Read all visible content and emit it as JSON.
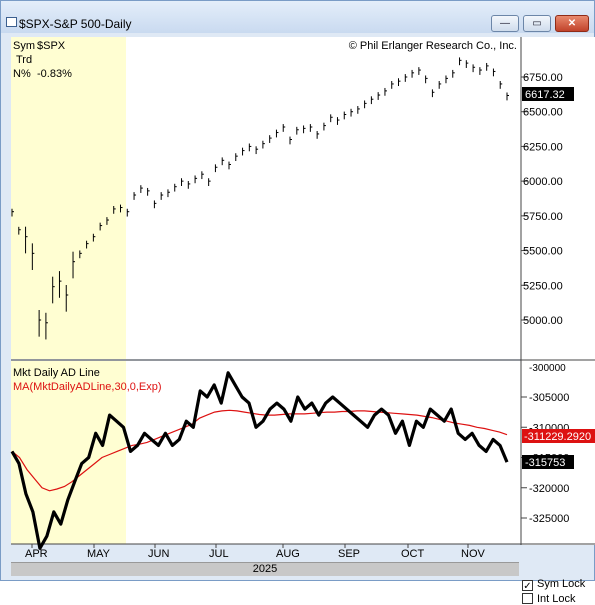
{
  "window": {
    "title": "$SPX-S&P 500-Daily",
    "buttons": {
      "minimize": "—",
      "restore": "▭",
      "close": "✕"
    }
  },
  "info": {
    "sym_label": "Sym",
    "sym_value": "$SPX",
    "trd_label": "Trd",
    "pct_label": "N%",
    "pct_value": "-0.83%",
    "copyright": "© Phil Erlanger Research Co., Inc."
  },
  "price_panel": {
    "y_ticks": [
      "6750.00",
      "6500.00",
      "6250.00",
      "6000.00",
      "5750.00",
      "5500.00",
      "5250.00",
      "5000.00"
    ],
    "last_price": "6617.32"
  },
  "ad_panel": {
    "title": "Mkt Daily AD Line",
    "ma_label": "MA(MktDailyADLine,30,0,Exp)",
    "y_ticks": [
      "-305000",
      "-310000",
      "-315000",
      "-320000",
      "-325000"
    ],
    "top_tick": "-300000",
    "ma_value": "-311229.2920",
    "last_value": "-315753"
  },
  "x_axis": {
    "months": [
      "APR",
      "MAY",
      "JUN",
      "JUL",
      "AUG",
      "SEP",
      "OCT",
      "NOV"
    ],
    "year": "2025"
  },
  "controls": {
    "sym_lock": "Sym Lock",
    "sym_lock_checked": true,
    "int_lock": "Int Lock",
    "int_lock_checked": false
  },
  "colors": {
    "highlight": "#fffed2",
    "ma_line": "#dd1111",
    "ma_tag": "#dd1111",
    "last_tag": "#000000"
  },
  "chart_data": [
    {
      "type": "line",
      "ylim": [
        4800,
        7000
      ],
      "closes": [
        5780,
        5650,
        5600,
        5480,
        5000,
        4980,
        5240,
        5280,
        5180,
        5420,
        5480,
        5550,
        5600,
        5680,
        5720,
        5800,
        5810,
        5780,
        5900,
        5950,
        5930,
        5840,
        5900,
        5920,
        5960,
        6000,
        5980,
        6020,
        6050,
        6000,
        6100,
        6150,
        6120,
        6180,
        6220,
        6250,
        6230,
        6270,
        6310,
        6350,
        6390,
        6300,
        6370,
        6380,
        6390,
        6340,
        6400,
        6460,
        6440,
        6480,
        6500,
        6520,
        6560,
        6590,
        6620,
        6650,
        6700,
        6720,
        6750,
        6780,
        6800,
        6740,
        6640,
        6700,
        6740,
        6780,
        6870,
        6850,
        6820,
        6800,
        6830,
        6790,
        6700,
        6617
      ]
    },
    {
      "type": "line",
      "ylim": [
        -330000,
        -300000
      ],
      "ad_line": [
        -314000,
        -316000,
        -321000,
        -324000,
        -330000,
        -328000,
        -324000,
        -326000,
        -322000,
        -319000,
        -316000,
        -315000,
        -311000,
        -313000,
        -308000,
        -309000,
        -310000,
        -314000,
        -313000,
        -311000,
        -312000,
        -313000,
        -311000,
        -313000,
        -312000,
        -309000,
        -310000,
        -304000,
        -305000,
        -303000,
        -306000,
        -301000,
        -303000,
        -305000,
        -306000,
        -310000,
        -309000,
        -307000,
        -306000,
        -307000,
        -309000,
        -305000,
        -307000,
        -306000,
        -308000,
        -306000,
        -305000,
        -306000,
        -307000,
        -308000,
        -309000,
        -310000,
        -308000,
        -307000,
        -308000,
        -311000,
        -309000,
        -313000,
        -309000,
        -310000,
        -307000,
        -308000,
        -309000,
        -307000,
        -311000,
        -312000,
        -311000,
        -313000,
        -314000,
        -312000,
        -313000,
        -315753
      ],
      "ma": [
        -314000,
        -315000,
        -317000,
        -318500,
        -320000,
        -320500,
        -320200,
        -319800,
        -319000,
        -318000,
        -317000,
        -316000,
        -315000,
        -314500,
        -314000,
        -313500,
        -313000,
        -312800,
        -312500,
        -312000,
        -311500,
        -311000,
        -310500,
        -310000,
        -309500,
        -308500,
        -308000,
        -307500,
        -307300,
        -307200,
        -307300,
        -307500,
        -307700,
        -307900,
        -308000,
        -308000,
        -307900,
        -307800,
        -307800,
        -307800,
        -307700,
        -307600,
        -307500,
        -307500,
        -307400,
        -307400,
        -307300,
        -307300,
        -307400,
        -307500,
        -307600,
        -307700,
        -307800,
        -307900,
        -308000,
        -308200,
        -308400,
        -308700,
        -309000,
        -309300,
        -309500,
        -309700,
        -310000,
        -310200,
        -310500,
        -310800,
        -311229
      ]
    }
  ]
}
